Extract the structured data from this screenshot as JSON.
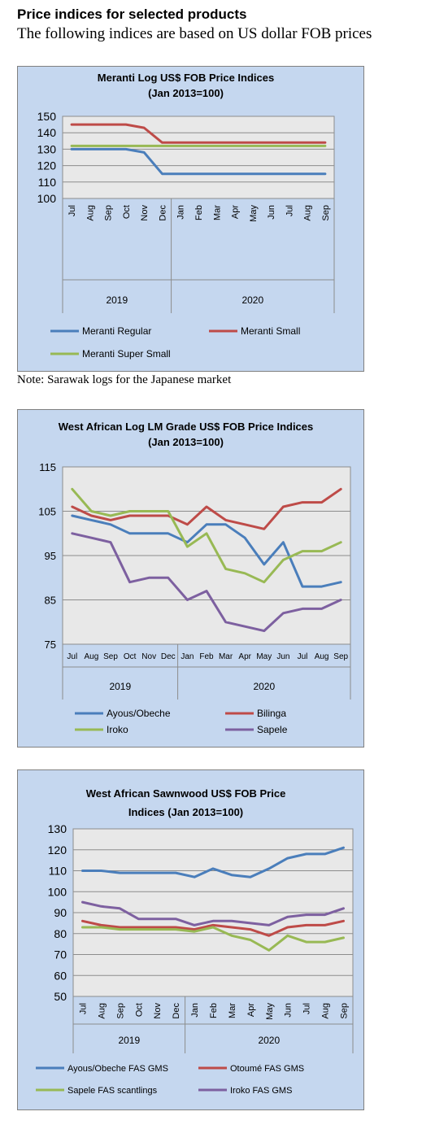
{
  "header": {
    "title": "Price indices for selected products",
    "subtitle": "The following indices are based on US dollar FOB prices"
  },
  "note": "Note: Sarawak logs for the Japanese market",
  "chart_data": [
    {
      "type": "line",
      "title": "Meranti Log US$ FOB Price Indices",
      "subtitle": "(Jan 2013=100)",
      "x": [
        "Jul",
        "Aug",
        "Sep",
        "Oct",
        "Nov",
        "Dec",
        "Jan",
        "Feb",
        "Mar",
        "Apr",
        "May",
        "Jun",
        "Jul",
        "Aug",
        "Sep"
      ],
      "x_rotated": true,
      "year_groups": [
        {
          "label": "2019",
          "span": 6
        },
        {
          "label": "2020",
          "span": 9
        }
      ],
      "ylim": [
        100,
        150
      ],
      "yticks": [
        100,
        110,
        120,
        130,
        140,
        150
      ],
      "grid": true,
      "legend_columns": 2,
      "series": [
        {
          "name": "Meranti Regular",
          "color": "#4a7ebb",
          "values": [
            130,
            130,
            130,
            130,
            128,
            115,
            115,
            115,
            115,
            115,
            115,
            115,
            115,
            115,
            115
          ]
        },
        {
          "name": "Meranti Small",
          "color": "#be4b48",
          "values": [
            145,
            145,
            145,
            145,
            143,
            134,
            134,
            134,
            134,
            134,
            134,
            134,
            134,
            134,
            134
          ]
        },
        {
          "name": "Meranti Super Small",
          "color": "#98b954",
          "values": [
            132,
            132,
            132,
            132,
            132,
            132,
            132,
            132,
            132,
            132,
            132,
            132,
            132,
            132,
            132
          ]
        }
      ]
    },
    {
      "type": "line",
      "title": "West African Log LM Grade US$ FOB Price Indices",
      "subtitle": "(Jan 2013=100)",
      "x": [
        "Jul",
        "Aug",
        "Sep",
        "Oct",
        "Nov",
        "Dec",
        "Jan",
        "Feb",
        "Mar",
        "Apr",
        "May",
        "Jun",
        "Jul",
        "Aug",
        "Sep"
      ],
      "x_rotated": false,
      "year_groups": [
        {
          "label": "2019",
          "span": 6
        },
        {
          "label": "2020",
          "span": 9
        }
      ],
      "ylim": [
        75,
        115
      ],
      "yticks": [
        75,
        85,
        95,
        105,
        115
      ],
      "grid": true,
      "legend_columns": 2,
      "series": [
        {
          "name": "Ayous/Obeche",
          "color": "#4a7ebb",
          "values": [
            104,
            103,
            102,
            100,
            100,
            100,
            98,
            102,
            102,
            99,
            93,
            98,
            88,
            88,
            89
          ]
        },
        {
          "name": "Bilinga",
          "color": "#be4b48",
          "values": [
            106,
            104,
            103,
            104,
            104,
            104,
            102,
            106,
            103,
            102,
            101,
            106,
            107,
            107,
            110
          ]
        },
        {
          "name": "Iroko",
          "color": "#98b954",
          "values": [
            110,
            105,
            104,
            105,
            105,
            105,
            97,
            100,
            92,
            91,
            89,
            94,
            96,
            96,
            98
          ]
        },
        {
          "name": "Sapele",
          "color": "#7d60a0",
          "values": [
            100,
            99,
            98,
            89,
            90,
            90,
            85,
            87,
            80,
            79,
            78,
            82,
            83,
            83,
            85
          ]
        }
      ]
    },
    {
      "type": "line",
      "title": "West African Sawnwood US$ FOB Price",
      "subtitle": "Indices (Jan 2013=100)",
      "x": [
        "Jul",
        "Aug",
        "Sep",
        "Oct",
        "Nov",
        "Dec",
        "Jan",
        "Feb",
        "Mar",
        "Apr",
        "May",
        "Jun",
        "Jul",
        "Aug",
        "Sep"
      ],
      "x_rotated": true,
      "year_groups": [
        {
          "label": "2019",
          "span": 6
        },
        {
          "label": "2020",
          "span": 9
        }
      ],
      "ylim": [
        50,
        130
      ],
      "yticks": [
        50,
        60,
        70,
        80,
        90,
        100,
        110,
        120,
        130
      ],
      "grid": true,
      "legend_columns": 2,
      "series": [
        {
          "name": "Ayous/Obeche FAS GMS",
          "color": "#4a7ebb",
          "values": [
            110,
            110,
            109,
            109,
            109,
            109,
            107,
            111,
            108,
            107,
            111,
            116,
            118,
            118,
            121
          ]
        },
        {
          "name": "Otoumé  FAS GMS",
          "color": "#be4b48",
          "values": [
            86,
            84,
            83,
            83,
            83,
            83,
            82,
            84,
            83,
            82,
            79,
            83,
            84,
            84,
            86
          ]
        },
        {
          "name": "Sapele FAS scantlings",
          "color": "#98b954",
          "values": [
            83,
            83,
            82,
            82,
            82,
            82,
            81,
            83,
            79,
            77,
            72,
            79,
            76,
            76,
            78
          ]
        },
        {
          "name": "Iroko FAS GMS",
          "color": "#7d60a0",
          "values": [
            95,
            93,
            92,
            87,
            87,
            87,
            84,
            86,
            86,
            85,
            84,
            88,
            89,
            89,
            92
          ]
        }
      ]
    }
  ]
}
